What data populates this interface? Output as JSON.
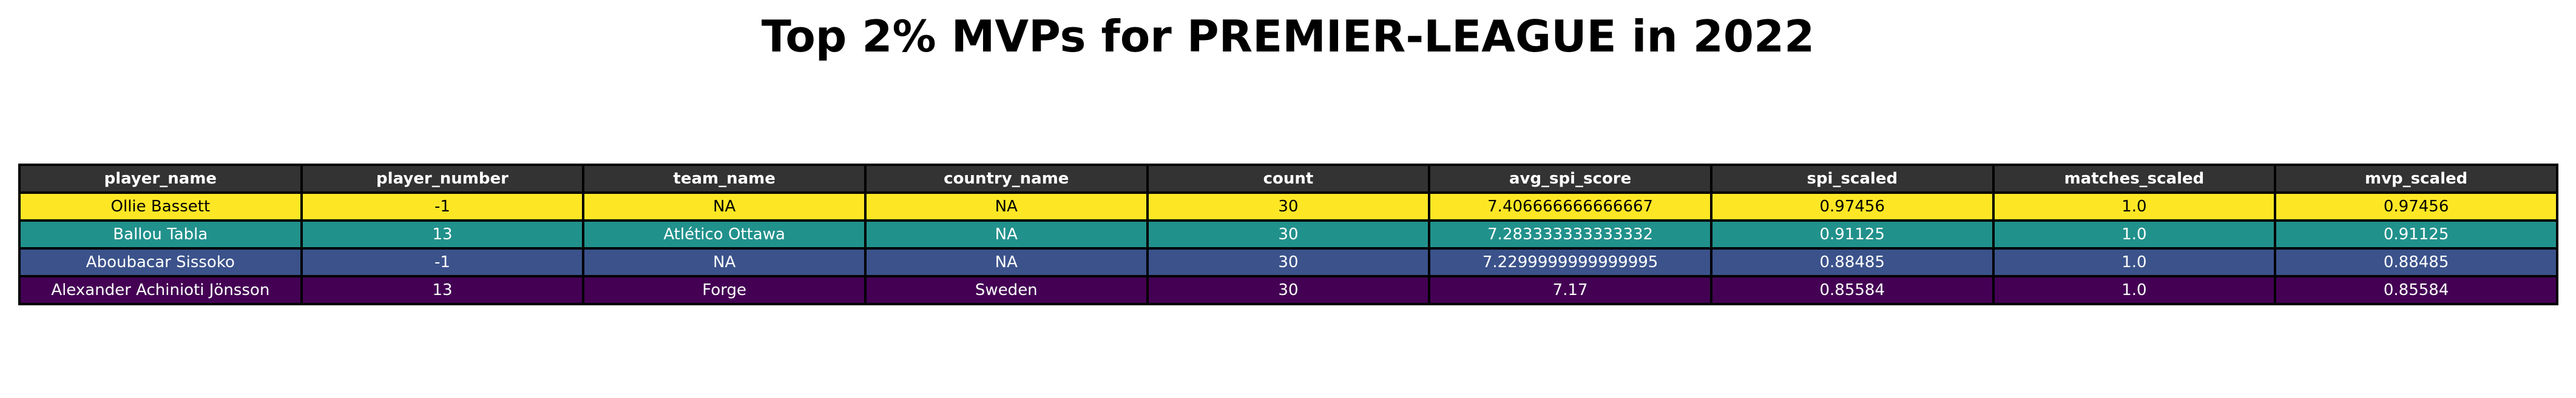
{
  "chart_data": {
    "type": "table",
    "title": "Top 2% MVPs for PREMIER-LEAGUE in 2022",
    "header_color": "#333333",
    "columns": [
      "player_name",
      "player_number",
      "team_name",
      "country_name",
      "count",
      "avg_spi_score",
      "spi_scaled",
      "matches_scaled",
      "mvp_scaled"
    ],
    "rows": [
      {
        "cells": [
          "Ollie Bassett",
          "-1",
          "NA",
          "NA",
          "30",
          "7.406666666666667",
          "0.97456",
          "1.0",
          "0.97456"
        ],
        "bg": "#fde725",
        "fg": "#000000"
      },
      {
        "cells": [
          "Ballou Tabla",
          "13",
          "Atlético Ottawa",
          "NA",
          "30",
          "7.283333333333332",
          "0.91125",
          "1.0",
          "0.91125"
        ],
        "bg": "#21918c",
        "fg": "#ffffff"
      },
      {
        "cells": [
          "Aboubacar Sissoko",
          "-1",
          "NA",
          "NA",
          "30",
          "7.2299999999999995",
          "0.88485",
          "1.0",
          "0.88485"
        ],
        "bg": "#3b528b",
        "fg": "#ffffff"
      },
      {
        "cells": [
          "Alexander Achinioti Jönsson",
          "13",
          "Forge",
          "Sweden",
          "30",
          "7.17",
          "0.85584",
          "1.0",
          "0.85584"
        ],
        "bg": "#440154",
        "fg": "#ffffff"
      }
    ]
  }
}
